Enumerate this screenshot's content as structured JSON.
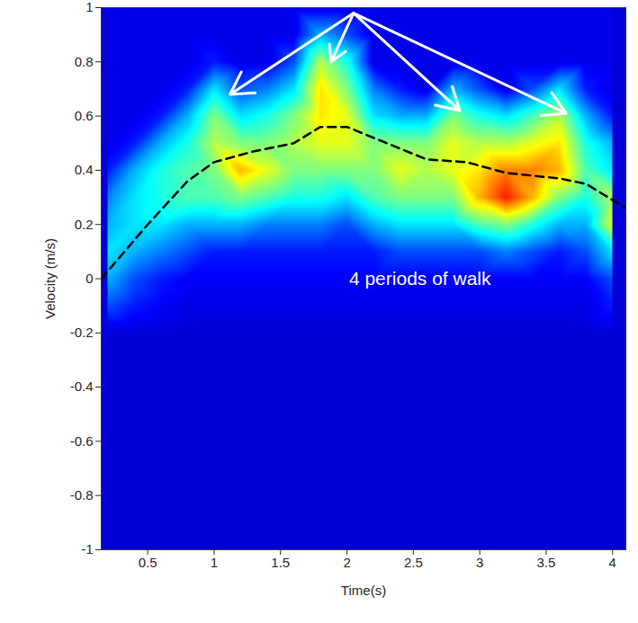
{
  "chart_data": {
    "type": "heatmap",
    "xlabel": "Time(s)",
    "ylabel": "Velocity (m/s)",
    "xlim": [
      0.15,
      4.1
    ],
    "ylim": [
      -1,
      1
    ],
    "xticks": [
      0.5,
      1,
      1.5,
      2,
      2.5,
      3,
      3.5,
      4
    ],
    "yticks": [
      -1,
      -0.8,
      -0.6,
      -0.4,
      -0.2,
      0,
      0.2,
      0.4,
      0.6,
      0.8,
      1
    ],
    "grid": false,
    "zlim": [
      0,
      1
    ],
    "heatmap": {
      "x": [
        0.2,
        0.4,
        0.6,
        0.8,
        1.0,
        1.2,
        1.4,
        1.6,
        1.8,
        2.0,
        2.2,
        2.4,
        2.6,
        2.8,
        3.0,
        3.2,
        3.4,
        3.6,
        3.8,
        4.0
      ],
      "y": [
        1.0,
        0.9,
        0.8,
        0.7,
        0.6,
        0.5,
        0.4,
        0.3,
        0.2,
        0.1,
        0.0,
        -0.1,
        -0.2,
        -0.3,
        -0.4,
        -0.5,
        -0.6,
        -0.7,
        -0.8,
        -0.9,
        -1.0
      ],
      "values": [
        [
          0.1,
          0.1,
          0.1,
          0.1,
          0.1,
          0.1,
          0.1,
          0.1,
          0.1,
          0.1,
          0.1,
          0.1,
          0.1,
          0.1,
          0.1,
          0.1,
          0.1,
          0.1,
          0.1,
          0.1
        ],
        [
          0.1,
          0.1,
          0.1,
          0.1,
          0.1,
          0.1,
          0.1,
          0.1,
          0.3,
          0.2,
          0.1,
          0.1,
          0.1,
          0.1,
          0.1,
          0.1,
          0.1,
          0.1,
          0.1,
          0.1
        ],
        [
          0.1,
          0.1,
          0.1,
          0.1,
          0.15,
          0.1,
          0.1,
          0.2,
          0.55,
          0.4,
          0.1,
          0.1,
          0.1,
          0.1,
          0.1,
          0.1,
          0.1,
          0.1,
          0.1,
          0.1
        ],
        [
          0.1,
          0.1,
          0.1,
          0.15,
          0.35,
          0.2,
          0.25,
          0.35,
          0.65,
          0.5,
          0.25,
          0.15,
          0.1,
          0.3,
          0.2,
          0.1,
          0.2,
          0.35,
          0.15,
          0.1
        ],
        [
          0.1,
          0.1,
          0.15,
          0.3,
          0.5,
          0.35,
          0.4,
          0.5,
          0.65,
          0.6,
          0.35,
          0.3,
          0.3,
          0.5,
          0.4,
          0.35,
          0.45,
          0.55,
          0.3,
          0.15
        ],
        [
          0.1,
          0.15,
          0.3,
          0.4,
          0.55,
          0.5,
          0.5,
          0.55,
          0.6,
          0.6,
          0.5,
          0.5,
          0.5,
          0.6,
          0.55,
          0.55,
          0.6,
          0.65,
          0.4,
          0.3
        ],
        [
          0.15,
          0.3,
          0.4,
          0.45,
          0.5,
          0.7,
          0.6,
          0.5,
          0.5,
          0.5,
          0.5,
          0.6,
          0.55,
          0.6,
          0.65,
          0.75,
          0.75,
          0.7,
          0.45,
          0.35
        ],
        [
          0.25,
          0.35,
          0.4,
          0.45,
          0.45,
          0.5,
          0.45,
          0.4,
          0.4,
          0.35,
          0.45,
          0.5,
          0.5,
          0.5,
          0.7,
          0.85,
          0.7,
          0.5,
          0.4,
          0.55
        ],
        [
          0.3,
          0.35,
          0.35,
          0.3,
          0.3,
          0.3,
          0.25,
          0.25,
          0.25,
          0.2,
          0.3,
          0.35,
          0.35,
          0.35,
          0.45,
          0.5,
          0.4,
          0.3,
          0.3,
          0.6
        ],
        [
          0.35,
          0.3,
          0.25,
          0.2,
          0.15,
          0.15,
          0.15,
          0.15,
          0.15,
          0.15,
          0.15,
          0.2,
          0.2,
          0.2,
          0.2,
          0.25,
          0.2,
          0.15,
          0.2,
          0.35
        ],
        [
          0.3,
          0.2,
          0.15,
          0.12,
          0.12,
          0.12,
          0.12,
          0.12,
          0.12,
          0.12,
          0.12,
          0.12,
          0.12,
          0.12,
          0.12,
          0.12,
          0.12,
          0.12,
          0.12,
          0.2
        ],
        [
          0.2,
          0.15,
          0.12,
          0.1,
          0.1,
          0.1,
          0.1,
          0.1,
          0.1,
          0.1,
          0.1,
          0.1,
          0.1,
          0.1,
          0.1,
          0.1,
          0.1,
          0.1,
          0.1,
          0.15
        ],
        [
          0.08,
          0.08,
          0.08,
          0.08,
          0.08,
          0.08,
          0.08,
          0.08,
          0.08,
          0.08,
          0.08,
          0.08,
          0.08,
          0.08,
          0.08,
          0.08,
          0.08,
          0.08,
          0.08,
          0.08
        ],
        [
          0.08,
          0.08,
          0.08,
          0.08,
          0.08,
          0.08,
          0.08,
          0.08,
          0.08,
          0.08,
          0.08,
          0.08,
          0.08,
          0.08,
          0.08,
          0.08,
          0.08,
          0.08,
          0.08,
          0.08
        ],
        [
          0.08,
          0.08,
          0.08,
          0.08,
          0.08,
          0.08,
          0.08,
          0.08,
          0.08,
          0.08,
          0.08,
          0.08,
          0.08,
          0.08,
          0.08,
          0.08,
          0.08,
          0.08,
          0.08,
          0.08
        ],
        [
          0.08,
          0.08,
          0.08,
          0.08,
          0.08,
          0.08,
          0.08,
          0.08,
          0.08,
          0.08,
          0.08,
          0.08,
          0.08,
          0.08,
          0.08,
          0.08,
          0.08,
          0.08,
          0.08,
          0.08
        ],
        [
          0.08,
          0.08,
          0.08,
          0.08,
          0.08,
          0.08,
          0.08,
          0.08,
          0.08,
          0.08,
          0.08,
          0.08,
          0.08,
          0.08,
          0.08,
          0.08,
          0.08,
          0.08,
          0.08,
          0.08
        ],
        [
          0.08,
          0.08,
          0.08,
          0.08,
          0.08,
          0.08,
          0.08,
          0.08,
          0.08,
          0.08,
          0.08,
          0.08,
          0.08,
          0.08,
          0.08,
          0.08,
          0.08,
          0.08,
          0.08,
          0.08
        ],
        [
          0.08,
          0.08,
          0.08,
          0.08,
          0.08,
          0.08,
          0.08,
          0.08,
          0.08,
          0.08,
          0.08,
          0.08,
          0.08,
          0.08,
          0.08,
          0.08,
          0.08,
          0.08,
          0.08,
          0.08
        ],
        [
          0.08,
          0.08,
          0.08,
          0.08,
          0.08,
          0.08,
          0.08,
          0.08,
          0.08,
          0.08,
          0.08,
          0.08,
          0.08,
          0.08,
          0.08,
          0.08,
          0.08,
          0.08,
          0.08,
          0.08
        ],
        [
          0.08,
          0.08,
          0.08,
          0.08,
          0.08,
          0.08,
          0.08,
          0.08,
          0.08,
          0.08,
          0.08,
          0.08,
          0.08,
          0.08,
          0.08,
          0.08,
          0.08,
          0.08,
          0.08,
          0.08
        ]
      ]
    },
    "line": {
      "x": [
        0.15,
        0.5,
        0.8,
        1.0,
        1.3,
        1.6,
        1.8,
        2.0,
        2.3,
        2.6,
        2.9,
        3.2,
        3.6,
        3.8,
        4.1
      ],
      "y": [
        0.0,
        0.2,
        0.36,
        0.43,
        0.47,
        0.5,
        0.56,
        0.56,
        0.5,
        0.44,
        0.43,
        0.39,
        0.37,
        0.35,
        0.26
      ],
      "color": "#000000",
      "line_style": "dashed"
    },
    "arrows": [
      {
        "x1": 2.05,
        "y1": 0.98,
        "x2": 1.12,
        "y2": 0.68
      },
      {
        "x1": 2.05,
        "y1": 0.98,
        "x2": 1.88,
        "y2": 0.8
      },
      {
        "x1": 2.05,
        "y1": 0.98,
        "x2": 2.85,
        "y2": 0.62
      },
      {
        "x1": 2.05,
        "y1": 0.98,
        "x2": 3.65,
        "y2": 0.61
      }
    ],
    "annotations": [
      {
        "text": "4 periods of walk",
        "x": 2.55,
        "y": 0.0
      }
    ]
  }
}
